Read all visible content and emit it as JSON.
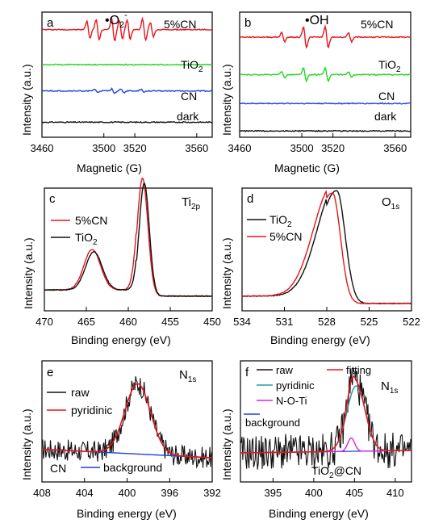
{
  "colors": {
    "red": "#e8141b",
    "green": "#1fd61f",
    "blue": "#1f3fe0",
    "black": "#111111",
    "teal": "#2a9a9a",
    "magenta": "#e020e0"
  },
  "chart_data": [
    {
      "id": "a",
      "type": "line",
      "panel_letter": "a",
      "radical": "•O",
      "radical_sub": "2",
      "radical_sup": "-",
      "xlabel": "Magnetic (G)",
      "ylabel": "Intensity (a.u.)",
      "xlim": [
        3460,
        3570
      ],
      "xticks": [
        "3460",
        "3500",
        "3520",
        "3560"
      ],
      "xtick_values": [
        3460,
        3500,
        3520,
        3560
      ],
      "series": [
        {
          "name": "5%CN",
          "color": "red",
          "baseline": 0.86,
          "peaks": [
            [
              3490,
              0.42
            ],
            [
              3496,
              0.5
            ],
            [
              3506,
              0.55
            ],
            [
              3511,
              0.45
            ],
            [
              3516,
              0.48
            ],
            [
              3526,
              0.52
            ],
            [
              3531,
              0.35
            ]
          ]
        },
        {
          "name": "TiO",
          "name_sub": "2",
          "color": "green",
          "baseline": 0.58,
          "peaks": []
        },
        {
          "name": "CN",
          "color": "blue",
          "baseline": 0.37,
          "peaks": [
            [
              3495,
              0.08
            ],
            [
              3506,
              0.1
            ],
            [
              3512,
              0.09
            ],
            [
              3525,
              0.07
            ]
          ]
        },
        {
          "name": "dark",
          "color": "black",
          "baseline": 0.12,
          "peaks": []
        }
      ]
    },
    {
      "id": "b",
      "type": "line",
      "panel_letter": "b",
      "radical": "•OH",
      "xlabel": "Magnetic (G)",
      "ylabel": "Intensity (a.u.)",
      "xlim": [
        3460,
        3570
      ],
      "xticks": [
        "3460",
        "3500",
        "3520",
        "3560"
      ],
      "xtick_values": [
        3460,
        3500,
        3520,
        3560
      ],
      "series": [
        {
          "name": "5%CN",
          "color": "red",
          "baseline": 0.8,
          "peaks": [
            [
              3488,
              0.22
            ],
            [
              3502,
              0.5
            ],
            [
              3516,
              0.5
            ],
            [
              3531,
              0.22
            ]
          ]
        },
        {
          "name": "TiO",
          "name_sub": "2",
          "color": "green",
          "baseline": 0.5,
          "peaks": [
            [
              3488,
              0.14
            ],
            [
              3502,
              0.32
            ],
            [
              3516,
              0.32
            ],
            [
              3531,
              0.14
            ]
          ]
        },
        {
          "name": "CN",
          "color": "blue",
          "baseline": 0.27,
          "peaks": []
        },
        {
          "name": "dark",
          "color": "black",
          "baseline": 0.05,
          "peaks": []
        }
      ]
    },
    {
      "id": "c",
      "type": "line",
      "panel_letter": "c",
      "element": "Ti",
      "element_sub": "2p",
      "xlabel": "Binding energy (eV)",
      "ylabel": "Intensity (a.u.)",
      "xlim": [
        470,
        450
      ],
      "xticks": [
        "470",
        "465",
        "460",
        "455",
        "450"
      ],
      "xtick_values": [
        470,
        465,
        460,
        455,
        450
      ],
      "series": [
        {
          "name": "5%CN",
          "color": "red",
          "baseline": 0.12,
          "peaks": [
            [
              464.3,
              0.33,
              1.4
            ],
            [
              458.3,
              0.96,
              0.9
            ]
          ]
        },
        {
          "name": "TiO",
          "name_sub": "2",
          "color": "black",
          "baseline": 0.12,
          "peaks": [
            [
              464.1,
              0.31,
              1.4
            ],
            [
              458.1,
              0.92,
              0.85
            ]
          ]
        }
      ]
    },
    {
      "id": "d",
      "type": "line",
      "panel_letter": "d",
      "element": "O",
      "element_sub": "1s",
      "xlabel": "Binding energy (eV)",
      "ylabel": "Intensity (a.u.)",
      "xlim": [
        534,
        522
      ],
      "xticks": [
        "534",
        "531",
        "528",
        "525",
        "522"
      ],
      "xtick_values": [
        534,
        531,
        528,
        525,
        522
      ],
      "series": [
        {
          "name": "TiO",
          "name_sub": "2",
          "color": "black",
          "baseline": 0.06,
          "peaks": [
            [
              527.3,
              0.92,
              0.85,
              1.9
            ]
          ]
        },
        {
          "name": "5%CN",
          "color": "red",
          "baseline": 0.06,
          "peaks": [
            [
              527.6,
              0.9,
              0.8,
              1.9
            ]
          ]
        }
      ]
    },
    {
      "id": "e",
      "type": "line",
      "panel_letter": "e",
      "element": "N",
      "element_sub": "1s",
      "corner_label": "CN",
      "xlabel": "Binding energy (eV)",
      "ylabel": "Intensity (a.u.)",
      "xlim": [
        408,
        392
      ],
      "xticks": [
        "408",
        "404",
        "400",
        "396",
        "392"
      ],
      "xtick_values": [
        408,
        404,
        400,
        396,
        392
      ],
      "series": [
        {
          "name": "raw",
          "color": "black",
          "noisy": true
        },
        {
          "name": "pyridinic",
          "color": "red",
          "center": 399.0,
          "height": 0.58,
          "width": 1.7
        },
        {
          "name": "background",
          "color": "blue",
          "bg_start": 0.27,
          "bg_end": 0.2
        }
      ]
    },
    {
      "id": "f",
      "type": "line",
      "panel_letter": "f",
      "element": "N",
      "element_sub": "1s",
      "corner_label": "TiO",
      "corner_label_sub": "2",
      "corner_label_rest": "@CN",
      "xlabel": "Binding energy (eV)",
      "ylabel": "Intensity (a.u.)",
      "xlim": [
        391,
        412
      ],
      "xticks": [
        "395",
        "400",
        "405",
        "410"
      ],
      "xtick_values": [
        395,
        400,
        405,
        410
      ],
      "series": [
        {
          "name": "raw",
          "color": "black",
          "noisy": true
        },
        {
          "name": "fitting",
          "color": "red"
        },
        {
          "name": "pyridinic",
          "color": "teal"
        },
        {
          "name": "N-O-Ti",
          "color": "magenta"
        },
        {
          "name": "background",
          "color": "blue"
        }
      ]
    }
  ]
}
